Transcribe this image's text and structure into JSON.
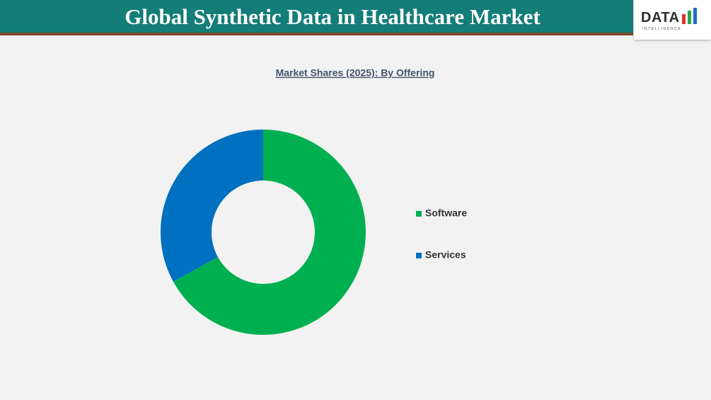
{
  "header": {
    "title": "Global Synthetic Data in Healthcare Market",
    "logo_text": "DATA",
    "logo_subtext": "INTELLIGENCE"
  },
  "chart_data": {
    "type": "donut",
    "title": "Market Shares (2025): By Offering",
    "categories": [
      "Software",
      "Services"
    ],
    "values": [
      67,
      33
    ],
    "colors": [
      "#00b050",
      "#0070c0"
    ]
  }
}
